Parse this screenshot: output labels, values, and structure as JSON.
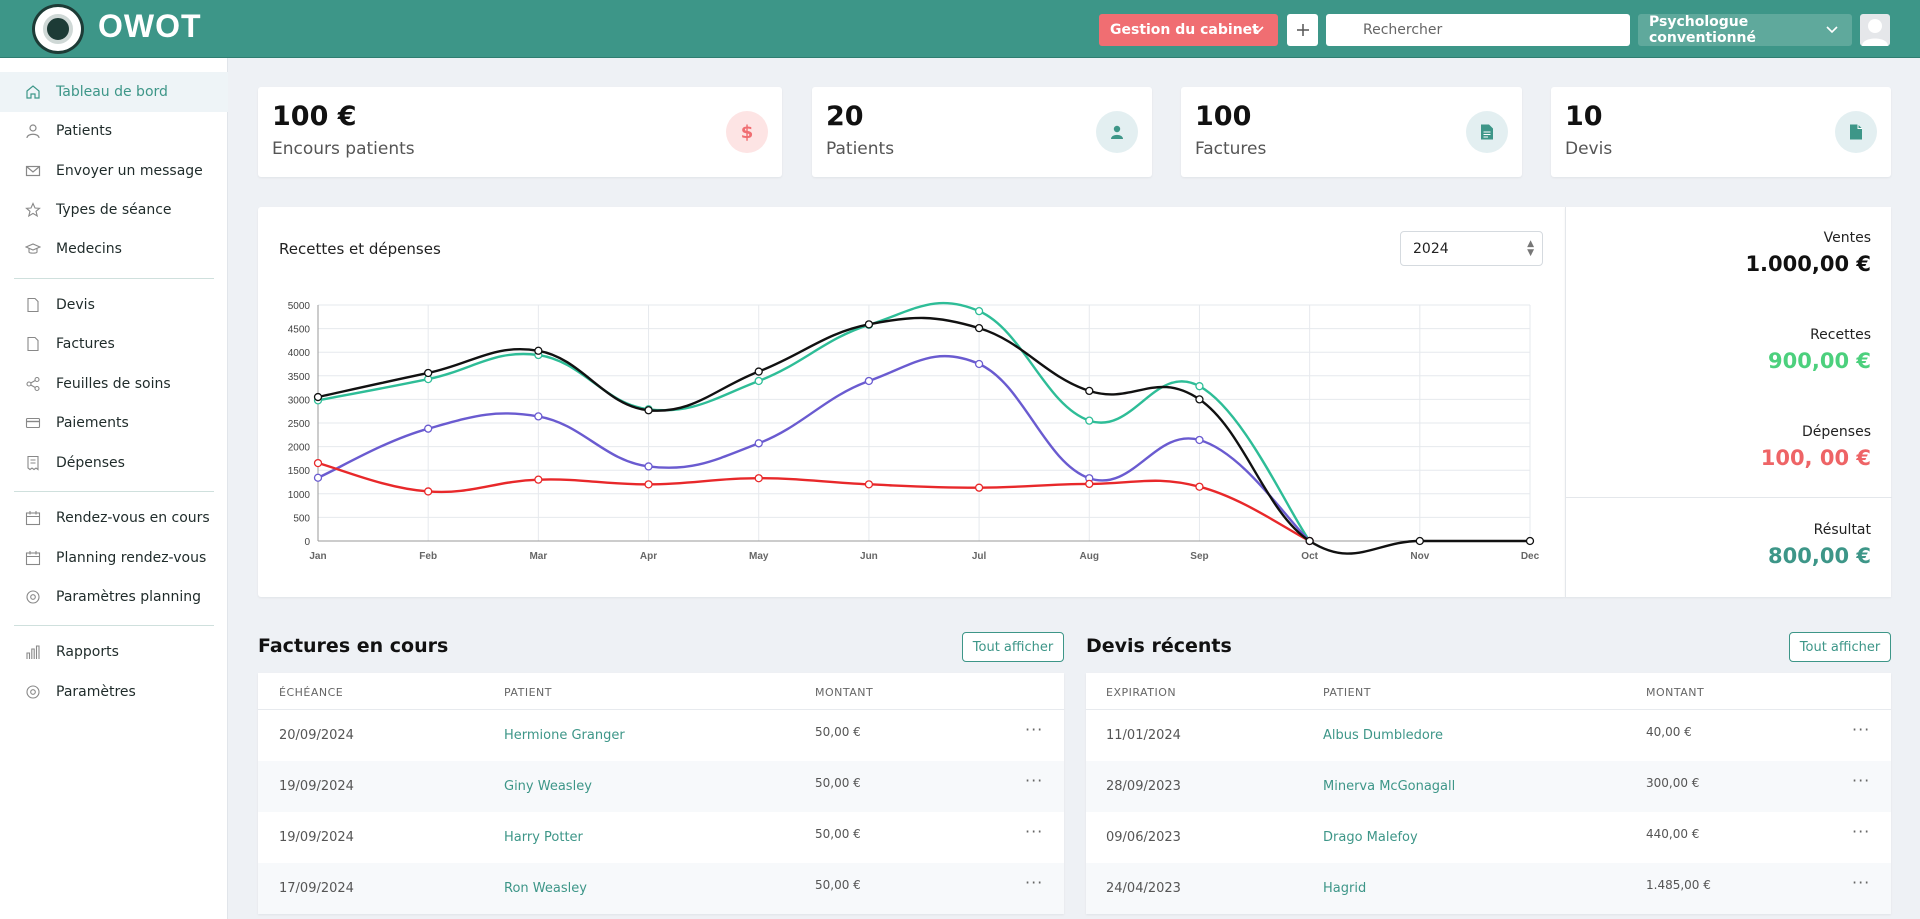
{
  "header": {
    "app_name": "OWOT",
    "cabinet_label": "Gestion du cabinet",
    "search_placeholder": "Rechercher",
    "role_label": "Psychologue conventionné"
  },
  "sidebar": {
    "items": [
      {
        "label": "Tableau de bord",
        "icon": "home-icon"
      },
      {
        "label": "Patients",
        "icon": "user-icon"
      },
      {
        "label": "Envoyer un message",
        "icon": "mail-icon"
      },
      {
        "label": "Types de séance",
        "icon": "star-icon"
      },
      {
        "label": "Medecins",
        "icon": "graduation-cap-icon"
      },
      {
        "label": "Devis",
        "icon": "file-icon"
      },
      {
        "label": "Factures",
        "icon": "file-icon"
      },
      {
        "label": "Feuilles de soins",
        "icon": "share-icon"
      },
      {
        "label": "Paiements",
        "icon": "credit-card-icon"
      },
      {
        "label": "Dépenses",
        "icon": "receipt-icon"
      },
      {
        "label": "Rendez-vous en cours",
        "icon": "calendar-icon"
      },
      {
        "label": "Planning rendez-vous",
        "icon": "calendar-icon"
      },
      {
        "label": "Paramètres planning",
        "icon": "settings-icon"
      },
      {
        "label": "Rapports",
        "icon": "bar-chart-icon"
      },
      {
        "label": "Paramètres",
        "icon": "settings-icon"
      }
    ]
  },
  "stats": [
    {
      "value": "100 €",
      "label": "Encours patients",
      "icon": "dollar-icon",
      "color": "#f06e72"
    },
    {
      "value": "20",
      "label": "Patients",
      "icon": "user-icon",
      "color": "#3d9688"
    },
    {
      "value": "100",
      "label": "Factures",
      "icon": "invoice-icon",
      "color": "#3d9688"
    },
    {
      "value": "10",
      "label": "Devis",
      "icon": "file-icon",
      "color": "#3d9688"
    }
  ],
  "chart": {
    "title": "Recettes et dépenses",
    "year": "2024"
  },
  "chart_data": {
    "type": "line",
    "x": [
      "Jan",
      "Feb",
      "Mar",
      "Apr",
      "May",
      "Jun",
      "Jul",
      "Aug",
      "Sep",
      "Oct",
      "Nov",
      "Dec"
    ],
    "yticks": [
      0,
      500,
      1000,
      1500,
      2000,
      2500,
      3000,
      3500,
      4000,
      4500,
      5000
    ],
    "ylim": [
      0,
      5000
    ],
    "series": [
      {
        "color": "#2ebd97",
        "values": [
          2980,
          3430,
          3940,
          2790,
          3390,
          4580,
          4870,
          2550,
          3280,
          0,
          null,
          null
        ]
      },
      {
        "color": "#6a5bd0",
        "values": [
          1340,
          2380,
          2640,
          1580,
          2070,
          3390,
          3750,
          1330,
          2140,
          0,
          null,
          null
        ]
      },
      {
        "color": "#e8282a",
        "values": [
          1650,
          1050,
          1300,
          1200,
          1330,
          1200,
          1130,
          1210,
          1150,
          0,
          null,
          null
        ]
      },
      {
        "color": "#111111",
        "values": [
          3050,
          3560,
          4030,
          2770,
          3590,
          4590,
          4510,
          3180,
          3000,
          0,
          0,
          0
        ]
      }
    ]
  },
  "summary": {
    "ventes_label": "Ventes",
    "ventes_value": "1.000,00 €",
    "recettes_label": "Recettes",
    "recettes_value": "900,00 €",
    "depenses_label": "Dépenses",
    "depenses_value": "100, 00 €",
    "resultat_label": "Résultat",
    "resultat_value": "800,00 €",
    "recettes_color": "#4cd07d",
    "depenses_color": "#ee6466",
    "resultat_color": "#3d9688"
  },
  "factures": {
    "title": "Factures en cours",
    "show_all": "Tout afficher",
    "headers": [
      "ÉCHÉANCE",
      "PATIENT",
      "MONTANT"
    ],
    "rows": [
      {
        "date": "20/09/2024",
        "patient": "Hermione Granger",
        "amount": "50,00 €"
      },
      {
        "date": "19/09/2024",
        "patient": "Giny Weasley",
        "amount": "50,00 €"
      },
      {
        "date": "19/09/2024",
        "patient": "Harry Potter",
        "amount": "50,00 €"
      },
      {
        "date": "17/09/2024",
        "patient": "Ron Weasley",
        "amount": "50,00 €"
      }
    ]
  },
  "devis": {
    "title": "Devis récents",
    "show_all": "Tout afficher",
    "headers": [
      "EXPIRATION",
      "PATIENT",
      "MONTANT"
    ],
    "rows": [
      {
        "date": "11/01/2024",
        "patient": "Albus Dumbledore",
        "amount": "40,00 €"
      },
      {
        "date": "28/09/2023",
        "patient": "Minerva McGonagall",
        "amount": "300,00 €"
      },
      {
        "date": "09/06/2023",
        "patient": "Drago Malefoy",
        "amount": "440,00 €"
      },
      {
        "date": "24/04/2023",
        "patient": "Hagrid",
        "amount": "1.485,00 €"
      }
    ]
  }
}
